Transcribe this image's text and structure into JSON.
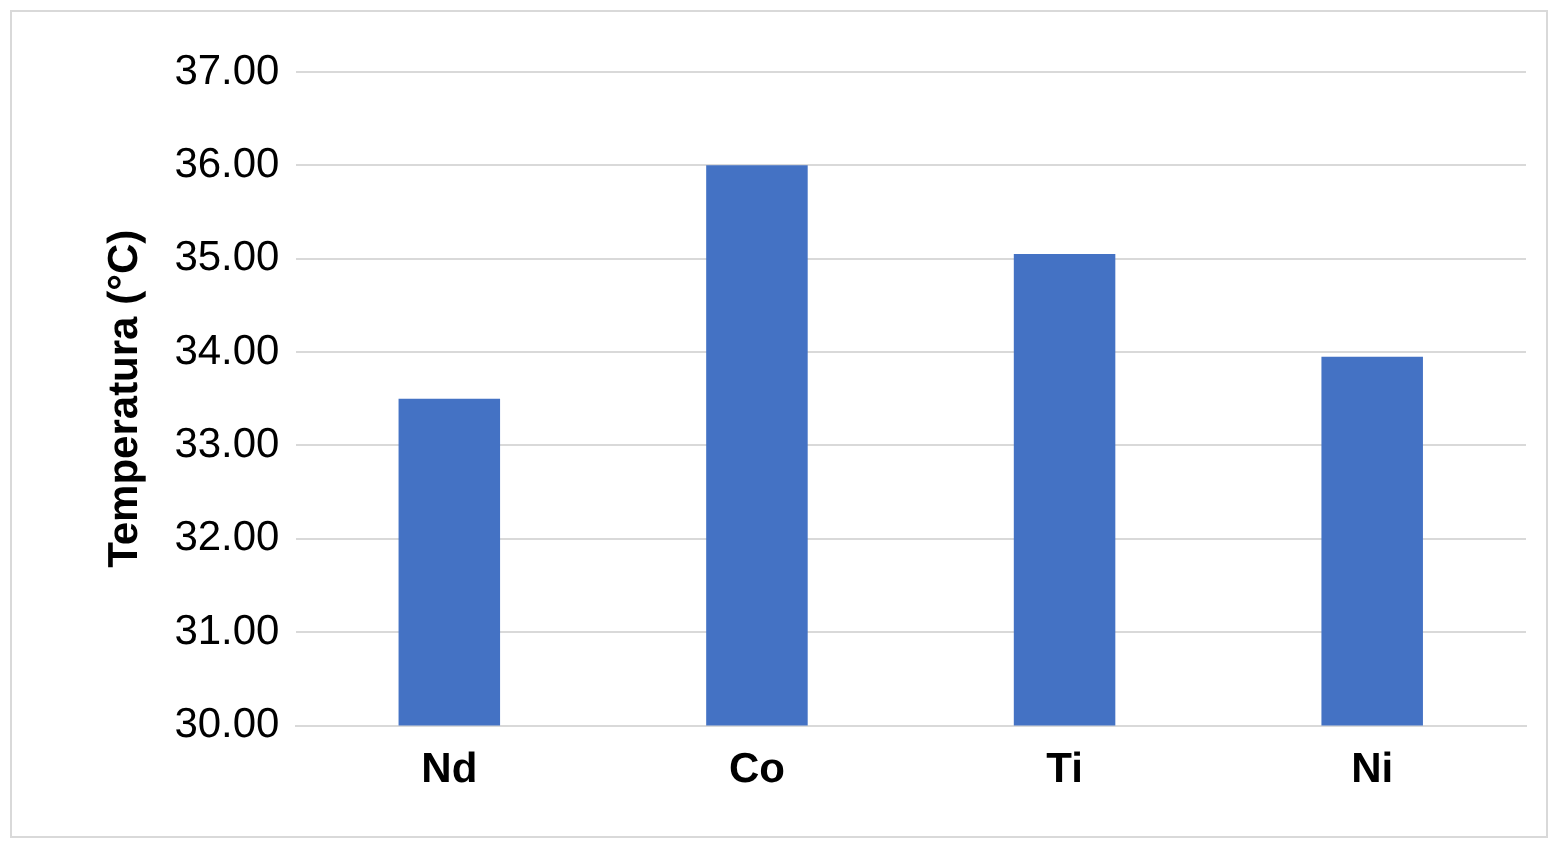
{
  "chart_data": {
    "type": "bar",
    "ylabel": "Temperatura (°C)",
    "categories": [
      "Nd",
      "Co",
      "Ti",
      "Ni"
    ],
    "values": [
      33.5,
      36.0,
      35.05,
      33.95
    ],
    "color": "#4472c4",
    "ylim": [
      30,
      37
    ],
    "yticks": [
      {
        "value": 30,
        "label": "30.00"
      },
      {
        "value": 31,
        "label": "31.00"
      },
      {
        "value": 32,
        "label": "32.00"
      },
      {
        "value": 33,
        "label": "33.00"
      },
      {
        "value": 34,
        "label": "34.00"
      },
      {
        "value": 35,
        "label": "35.00"
      },
      {
        "value": 36,
        "label": "36.00"
      },
      {
        "value": 37,
        "label": "37.00"
      }
    ],
    "grid": "y",
    "legend": false
  }
}
